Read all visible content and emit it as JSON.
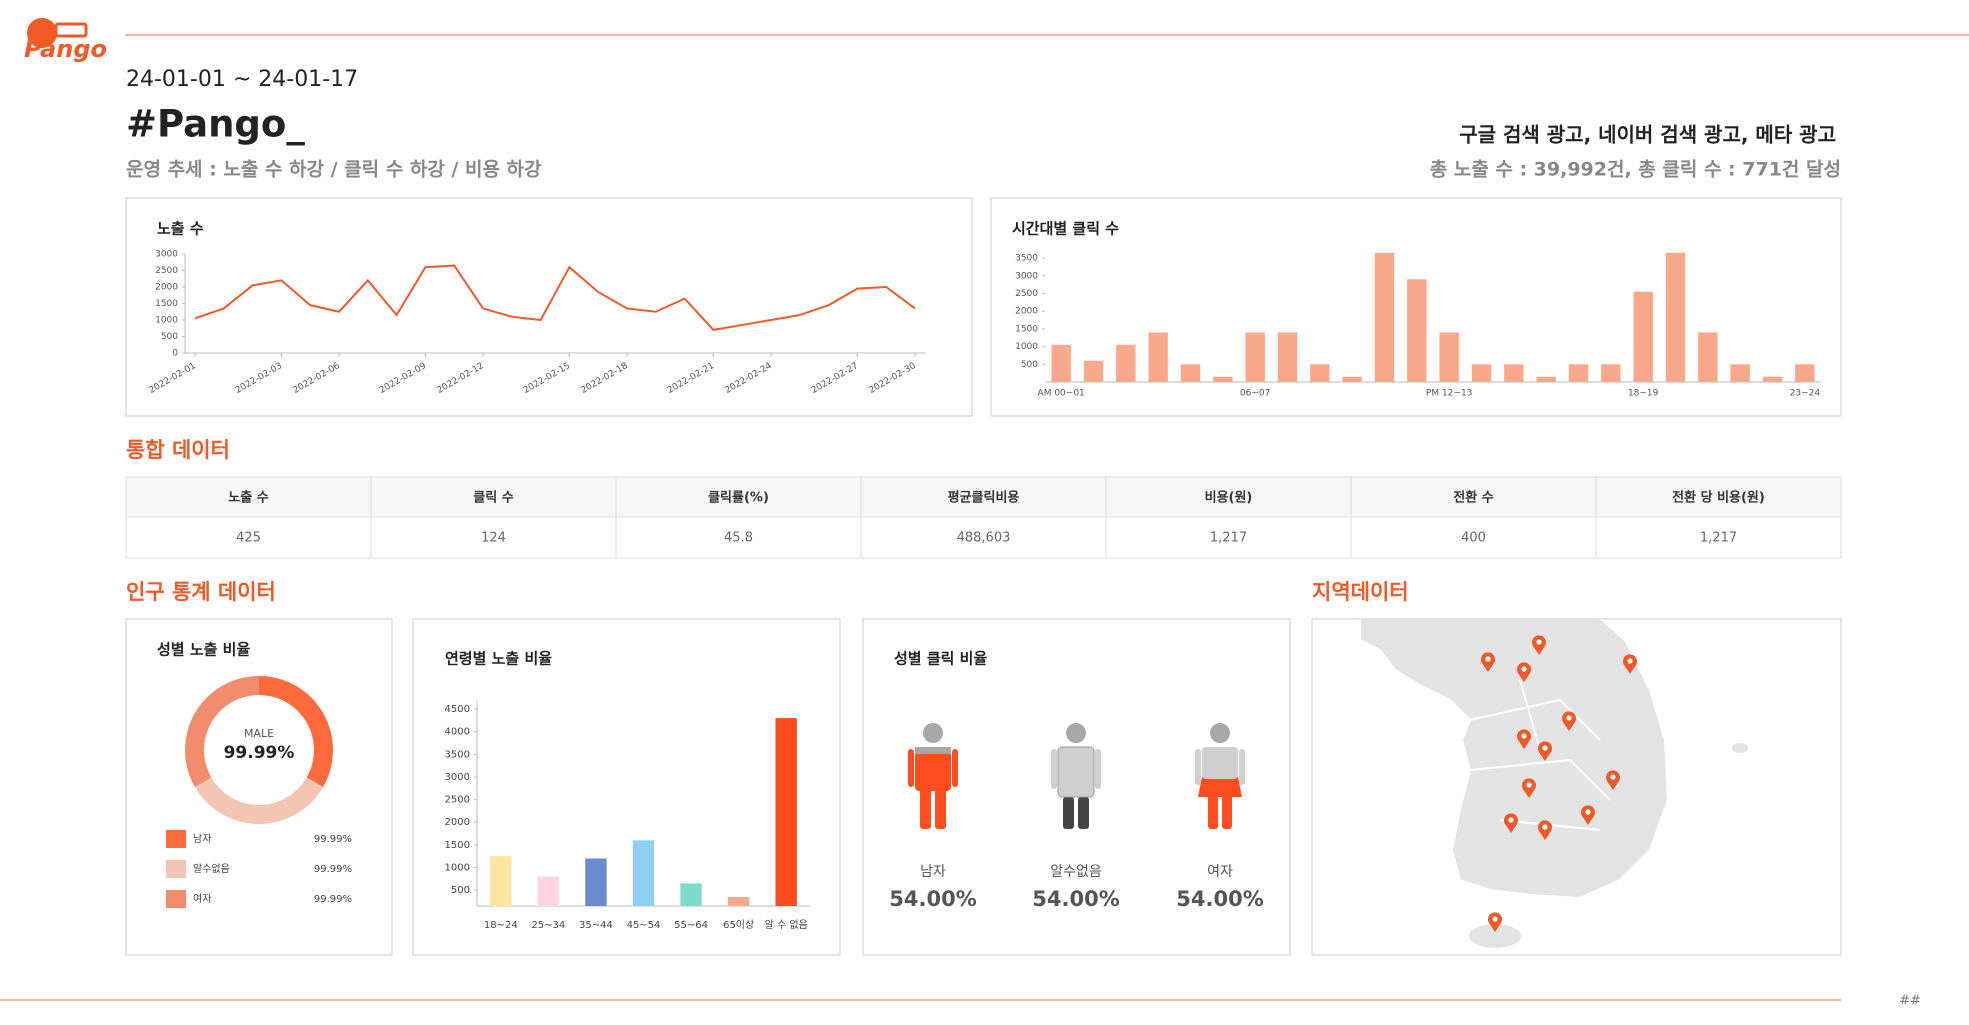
{
  "header": {
    "logo": "Pango",
    "date_range": "24-01-01 ~ 24-01-17",
    "title": "#Pango_",
    "trend": "운영 추세 : 노출 수 하강 / 클릭 수 하강 / 비용 하강",
    "channels": "구글 검색 광고, 네이버 검색 광고, 메타 광고",
    "summary": "총 노출 수 : 39,992건, 총 클릭 수 : 771건 달성"
  },
  "sections": {
    "integrated": "통합 데이터",
    "demographic": "인구 통계 데이터",
    "region": "지역데이터"
  },
  "table": {
    "columns": [
      "노출 수",
      "클릭 수",
      "클릭률(%)",
      "평균클릭비용",
      "비용(원)",
      "전환 수",
      "전환 당 비용(원)"
    ],
    "rows": [
      [
        "425",
        "124",
        "45.8",
        "488,603",
        "1,217",
        "400",
        "1,217"
      ]
    ]
  },
  "chart_data": [
    {
      "type": "line",
      "title": "노출 수",
      "categories": [
        "2022-02-01",
        null,
        null,
        "2022-02-03",
        null,
        "2022-02-06",
        null,
        null,
        "2022-02-09",
        null,
        "2022-02-12",
        null,
        null,
        "2022-02-15",
        null,
        "2022-02-18",
        null,
        null,
        "2022-02-21",
        null,
        "2022-02-24",
        null,
        null,
        "2022-02-27",
        null,
        "2022-02-30"
      ],
      "values": [
        1050,
        1350,
        2050,
        2200,
        1450,
        1250,
        2200,
        1150,
        2600,
        2650,
        1350,
        1100,
        1000,
        2600,
        1850,
        1350,
        1250,
        1650,
        700,
        850,
        1000,
        1150,
        1450,
        1950,
        2000,
        1350
      ],
      "color": "#f05a28",
      "ylim": [
        0,
        3000
      ],
      "yticks": [
        0,
        500,
        1000,
        1500,
        2000,
        2500,
        3000
      ]
    },
    {
      "type": "bar",
      "title": "시간대별 클릭 수",
      "categories": [
        "AM 00~01",
        null,
        null,
        null,
        null,
        null,
        "06~07",
        null,
        null,
        null,
        null,
        null,
        "PM 12~13",
        null,
        null,
        null,
        null,
        null,
        "18~19",
        null,
        null,
        null,
        null,
        "23~24"
      ],
      "values": [
        1050,
        600,
        1050,
        1400,
        500,
        150,
        1400,
        1400,
        500,
        150,
        3650,
        2900,
        1400,
        500,
        500,
        150,
        500,
        500,
        2550,
        3650,
        1400,
        500,
        150,
        500
      ],
      "color": "#f9a98a",
      "ylim": [
        0,
        3700
      ],
      "yticks": [
        500,
        1000,
        1500,
        2000,
        2500,
        3000,
        3500
      ]
    },
    {
      "type": "donut",
      "title": "성별 노출 비율",
      "center_label": "MALE",
      "categories": [
        "남자",
        "알수없음",
        "여자"
      ],
      "values": [
        99.99,
        99.99,
        99.99
      ],
      "value_labels": [
        "99.99%",
        "99.99%",
        "99.99%"
      ],
      "colors": [
        "#ff6a3d",
        "#f4c4b4",
        "#f28c6c"
      ]
    },
    {
      "type": "bar",
      "title": "연령별 노출 비율",
      "categories": [
        "18~24",
        "25~34",
        "35~44",
        "45~54",
        "55~64",
        "65이상",
        "알 수 없음"
      ],
      "values": [
        1250,
        800,
        1200,
        1600,
        650,
        350,
        4300
      ],
      "colors": [
        "#fde3a0",
        "#fdd5e0",
        "#6a8bcc",
        "#8fcff5",
        "#7ddccc",
        "#f9a98a",
        "#ff4d1f"
      ],
      "ylim": [
        150,
        4700
      ],
      "yticks": [
        500,
        1000,
        1500,
        2000,
        2500,
        3000,
        3500,
        4000,
        4500
      ]
    },
    {
      "type": "pictogram",
      "title": "성별 클릭 비율",
      "categories": [
        "남자",
        "알수없음",
        "여자"
      ],
      "values": [
        54,
        54,
        54
      ],
      "value_labels": [
        "54.00%",
        "54.00%",
        "54.00%"
      ],
      "colors": [
        "#ff4d1f",
        "#444444",
        "#ff4d1f"
      ]
    }
  ],
  "footer": "##"
}
